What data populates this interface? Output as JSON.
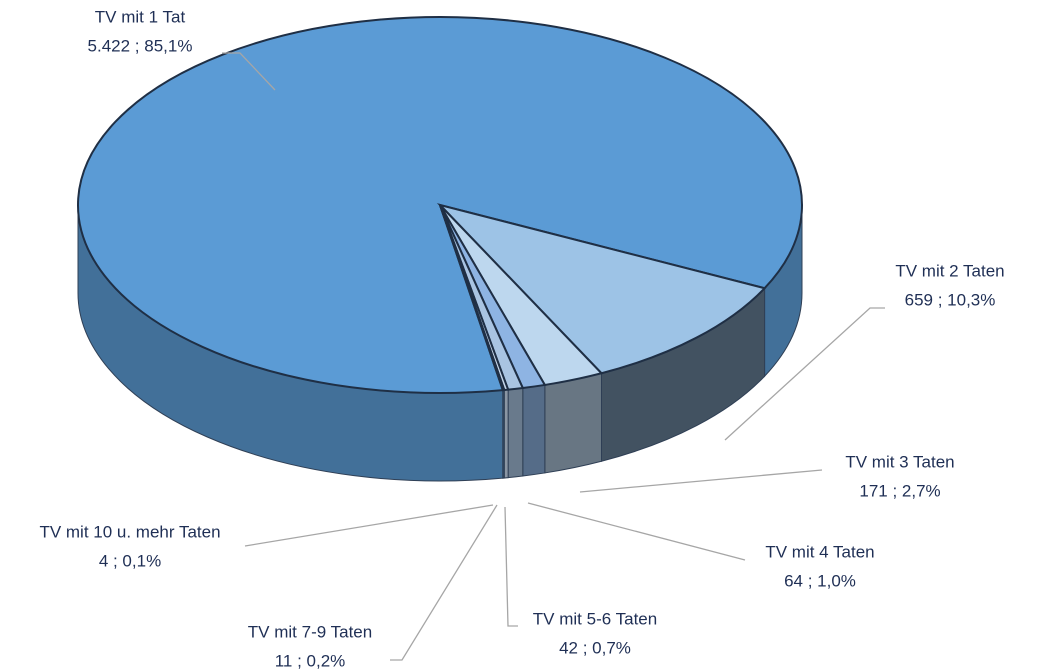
{
  "chart_data": {
    "type": "pie",
    "categories": [
      "TV mit 1 Tat",
      "TV mit 2 Taten",
      "TV mit 3 Taten",
      "TV mit 4 Taten",
      "TV mit 5-6 Taten",
      "TV mit 7-9 Taten",
      "TV mit 10 u. mehr Taten"
    ],
    "values": [
      5422,
      659,
      171,
      64,
      42,
      11,
      4
    ],
    "value_labels": [
      "5.422 ; 85,1%",
      "659 ; 10,3%",
      "171 ; 2,7%",
      "64 ; 1,0%",
      "42 ; 0,7%",
      "11 ; 0,2%",
      "4 ; 0,1%"
    ],
    "colors": [
      "#5b9bd5",
      "#9dc3e6",
      "#bdd7ee",
      "#8eb4e3",
      "#a9c4e2",
      "#c5d6ea",
      "#5b9bd5"
    ]
  }
}
